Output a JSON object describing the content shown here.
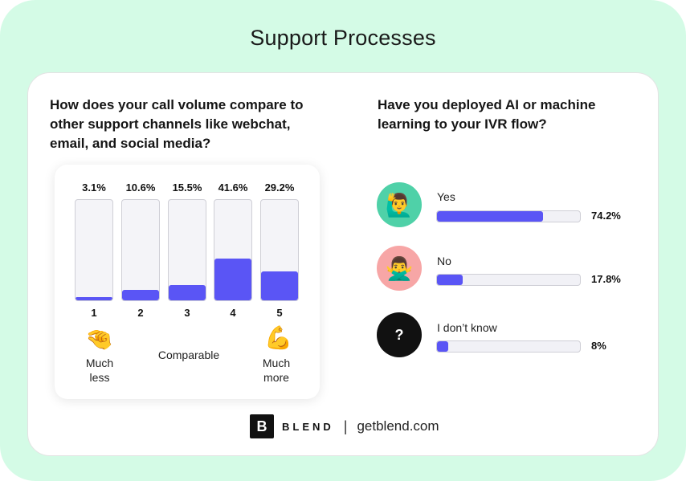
{
  "page": {
    "title": "Support Processes"
  },
  "chart_data": [
    {
      "type": "bar",
      "title": "How does your call volume compare to other support channels like webchat, email, and social media?",
      "categories": [
        "1",
        "2",
        "3",
        "4",
        "5"
      ],
      "values": [
        3.1,
        10.6,
        15.5,
        41.6,
        29.2
      ],
      "value_labels": [
        "3.1%",
        "10.6%",
        "15.5%",
        "41.6%",
        "29.2%"
      ],
      "ylim": [
        0,
        100
      ],
      "scale_labels": {
        "low": "Much less",
        "mid": "Comparable",
        "high": "Much more"
      },
      "scale_icons": {
        "low": "pinching-hand-icon",
        "high": "flexed-biceps-icon"
      },
      "color": "#5a55f5"
    },
    {
      "type": "bar",
      "orientation": "horizontal",
      "title": "Have you deployed AI or machine learning to your IVR flow?",
      "categories": [
        "Yes",
        "No",
        "I don’t know"
      ],
      "values": [
        74.2,
        17.8,
        8
      ],
      "value_labels": [
        "74.2%",
        "17.8%",
        "8%"
      ],
      "xlim": [
        0,
        100
      ],
      "icons": [
        "person-raising-hand-icon",
        "person-gesturing-no-icon",
        "question-mark-icon"
      ],
      "icon_colors": [
        "#4fd1a8",
        "#f7a6a6",
        "#111111"
      ],
      "question_glyph": "?",
      "color": "#5a55f5"
    }
  ],
  "footer": {
    "logo_letter": "B",
    "brand": "BLEND",
    "separator": "|",
    "site": "getblend.com"
  }
}
